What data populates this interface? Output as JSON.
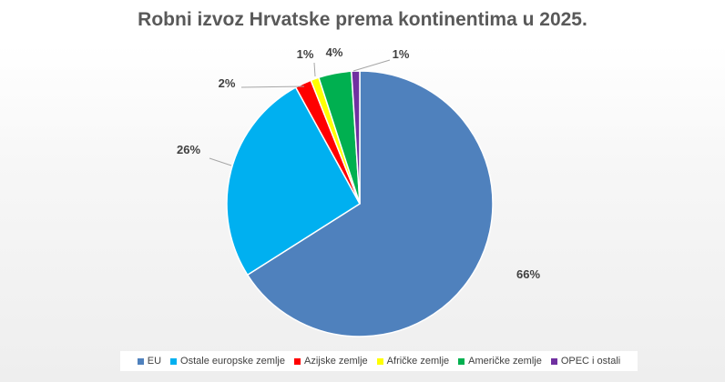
{
  "chart_data": {
    "type": "pie",
    "title": "Robni izvoz Hrvatske prema kontinentima u 2025.",
    "categories": [
      "EU",
      "Ostale europske zemlje",
      "Azijske zemlje",
      "Afričke zemlje",
      "Američke zemlje",
      "OPEC i ostali"
    ],
    "values": [
      66,
      26,
      2,
      1,
      4,
      1
    ],
    "labels": [
      "66%",
      "26%",
      "2%",
      "1%",
      "4%",
      "1%"
    ],
    "colors": [
      "#4f81bd",
      "#00b0f0",
      "#ff0000",
      "#ffff00",
      "#00b050",
      "#7030a0"
    ],
    "legend_position": "bottom"
  }
}
